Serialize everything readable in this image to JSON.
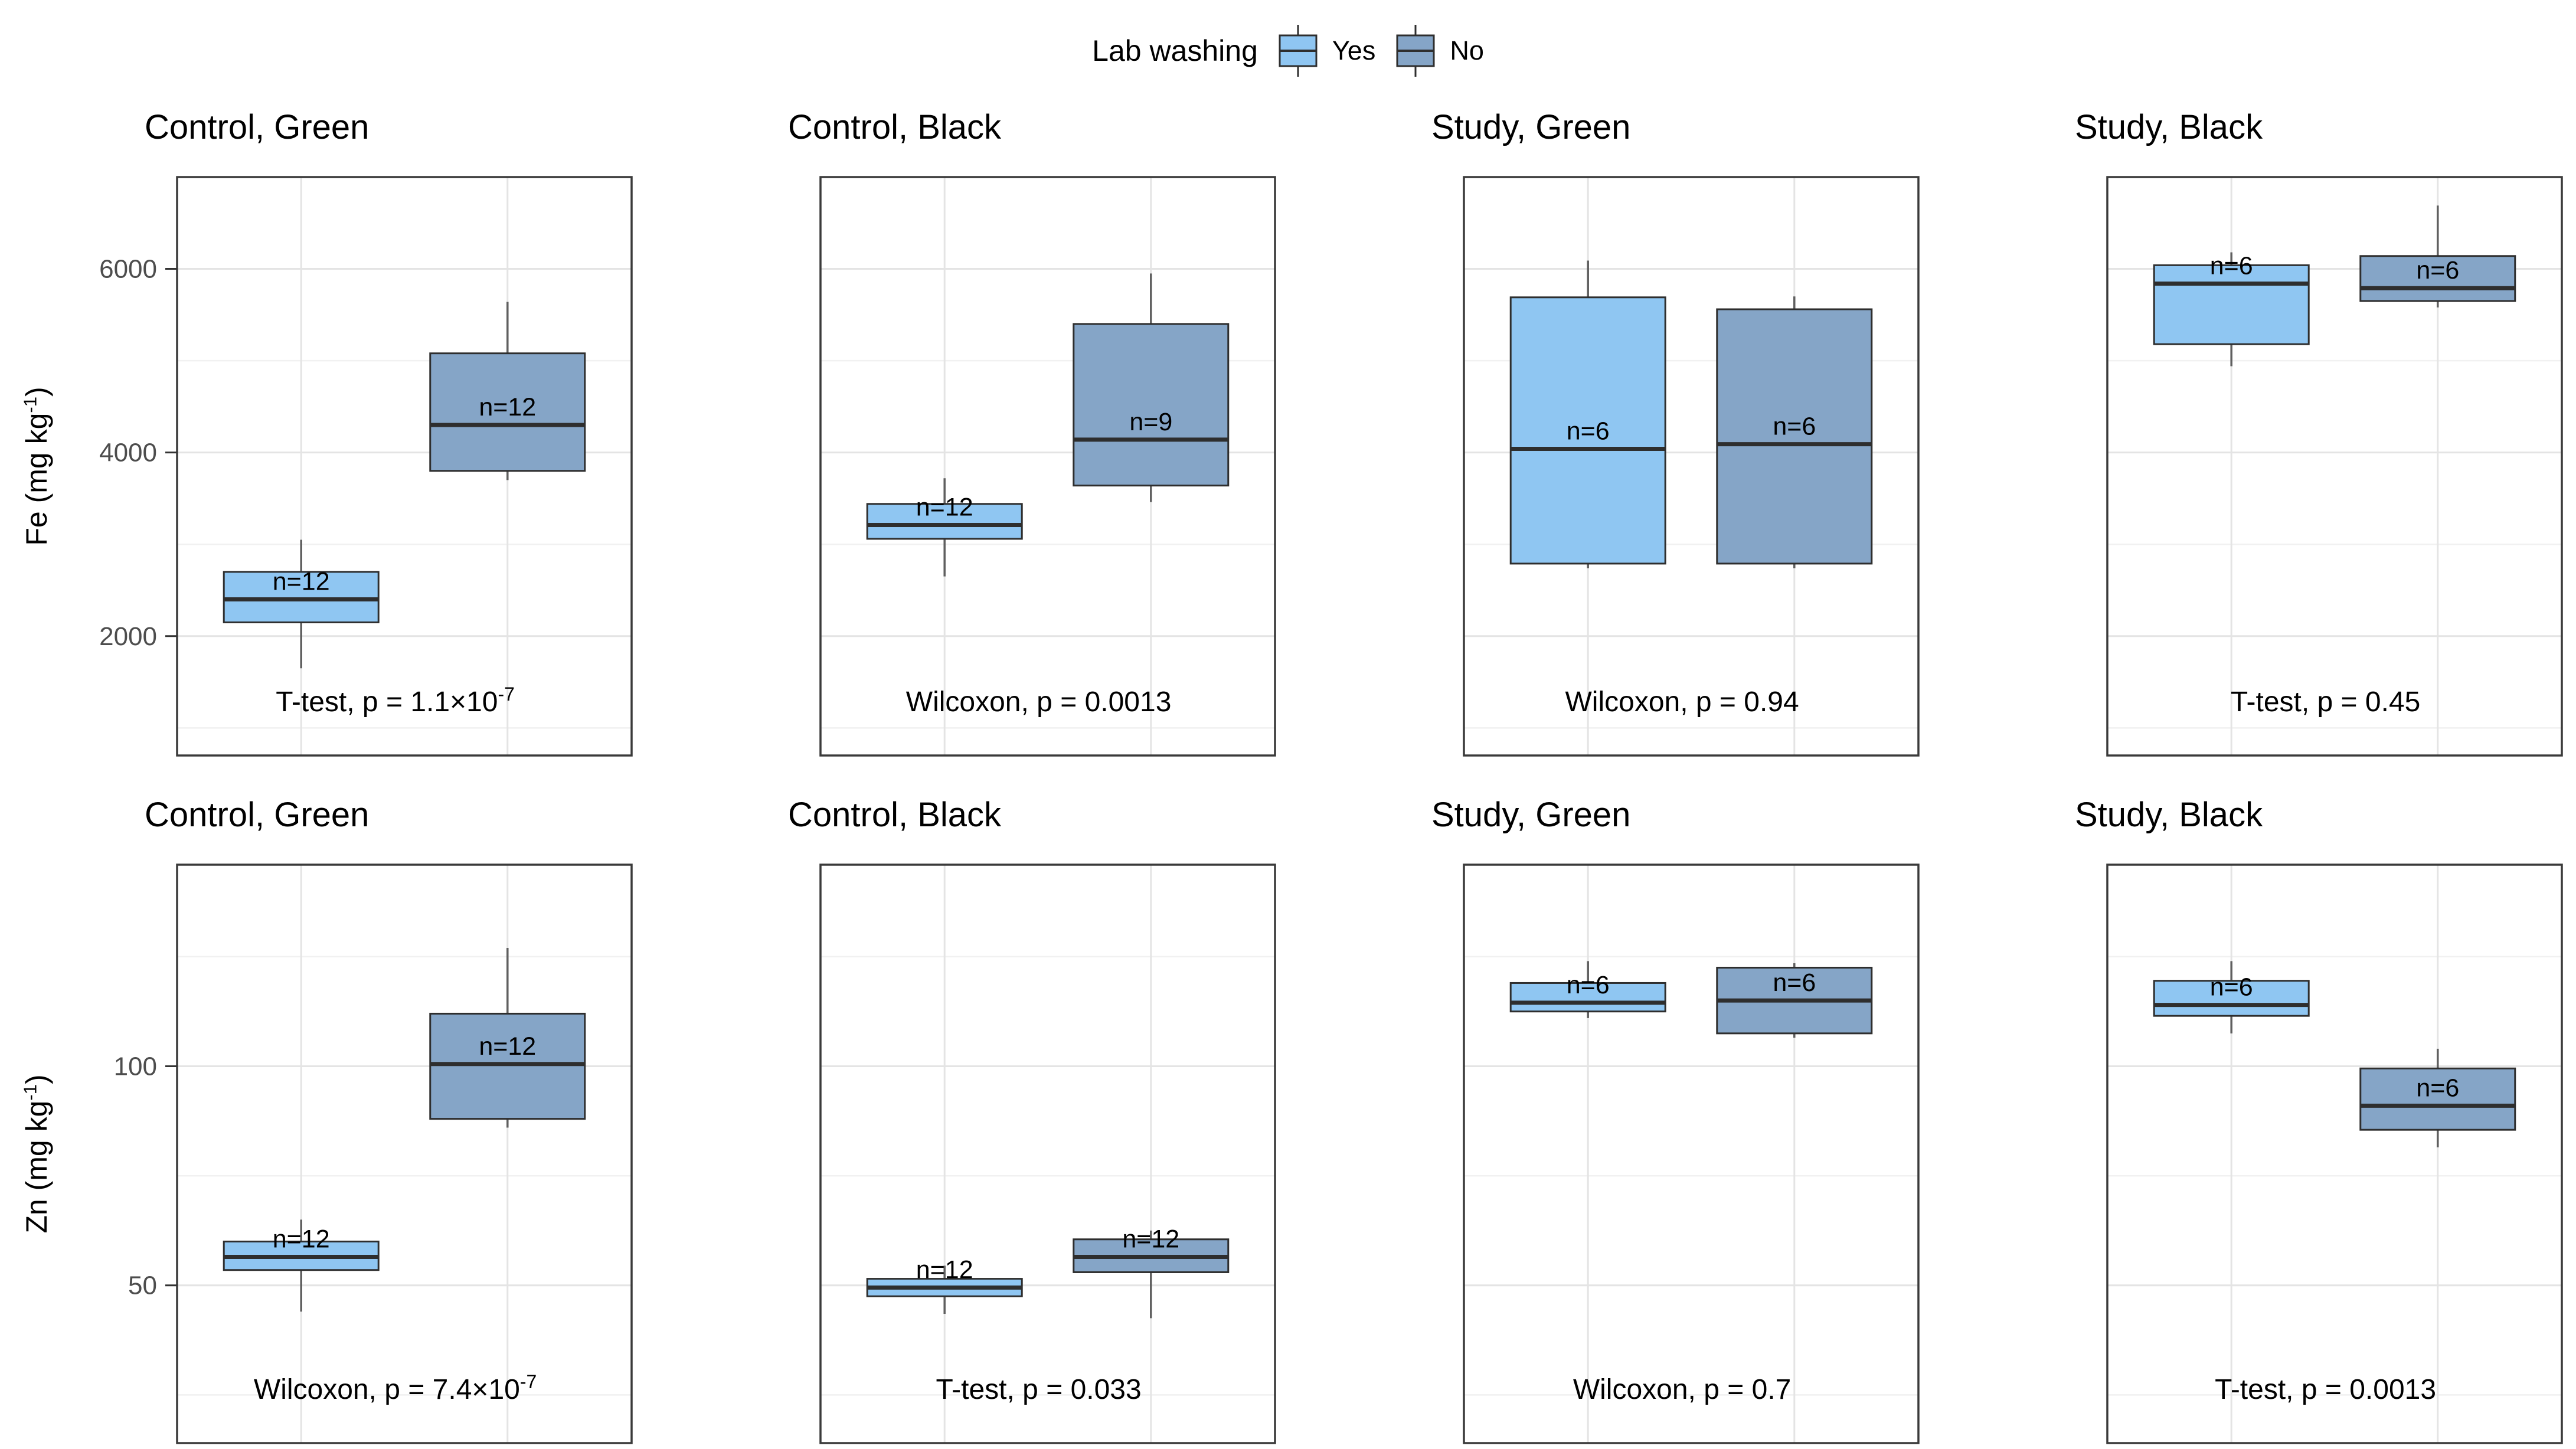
{
  "figure": {
    "legend": {
      "title": "Lab washing",
      "items": [
        {
          "label": "Yes",
          "color": "#8FC6F2"
        },
        {
          "label": "No",
          "color": "#85A5C7"
        }
      ]
    },
    "rows": [
      {
        "axis_label": "Fe (mg kg⁻¹)"
      },
      {
        "axis_label": "Zn (mg kg⁻¹)"
      }
    ]
  },
  "style": {
    "yes_fill": "#8FC6F2",
    "no_fill": "#85A5C7",
    "box_border": "#2E2E2E",
    "median": "#2E2E2E",
    "whisker": "#5F5F5F",
    "grid_major": "#E4E4E4",
    "grid_minor": "#F1F1F1",
    "panel_border": "#3A3A3A",
    "tick_mark": "#333333",
    "tick_label": "#4D4D4D",
    "text": "#000000"
  },
  "chart_data": [
    {
      "type": "boxplot",
      "row": 0,
      "col": 0,
      "title": "Control, Green",
      "annotation": "T-test, p = 1.1×10⁻⁷",
      "y_unit": "Fe (mg kg⁻¹)",
      "ylim": [
        700,
        7000
      ],
      "yticks": [
        {
          "value": 2000,
          "label": "2000"
        },
        {
          "value": 4000,
          "label": "4000"
        },
        {
          "value": 6000,
          "label": "6000"
        }
      ],
      "yminor": [
        1000,
        3000,
        5000,
        7000
      ],
      "show_y_axis": true,
      "boxes": [
        {
          "group": "Yes",
          "n_label": "n=12",
          "low": 1650,
          "q1": 2150,
          "median": 2400,
          "q3": 2700,
          "high": 3050
        },
        {
          "group": "No",
          "n_label": "n=12",
          "low": 3700,
          "q1": 3800,
          "median": 4300,
          "q3": 5080,
          "high": 5640
        }
      ]
    },
    {
      "type": "boxplot",
      "row": 0,
      "col": 1,
      "title": "Control, Black",
      "annotation": "Wilcoxon, p = 0.0013",
      "y_unit": "Fe (mg kg⁻¹)",
      "ylim": [
        700,
        7000
      ],
      "yticks": [
        {
          "value": 2000,
          "label": "2000"
        },
        {
          "value": 4000,
          "label": "4000"
        },
        {
          "value": 6000,
          "label": "6000"
        }
      ],
      "yminor": [
        1000,
        3000,
        5000,
        7000
      ],
      "show_y_axis": false,
      "boxes": [
        {
          "group": "Yes",
          "n_label": "n=12",
          "low": 2650,
          "q1": 3060,
          "median": 3210,
          "q3": 3440,
          "high": 3720
        },
        {
          "group": "No",
          "n_label": "n=9",
          "low": 3460,
          "q1": 3640,
          "median": 4140,
          "q3": 5400,
          "high": 5950
        }
      ]
    },
    {
      "type": "boxplot",
      "row": 0,
      "col": 2,
      "title": "Study, Green",
      "annotation": "Wilcoxon, p = 0.94",
      "y_unit": "Fe (mg kg⁻¹)",
      "ylim": [
        700,
        7000
      ],
      "yticks": [
        {
          "value": 2000,
          "label": "2000"
        },
        {
          "value": 4000,
          "label": "4000"
        },
        {
          "value": 6000,
          "label": "6000"
        }
      ],
      "yminor": [
        1000,
        3000,
        5000,
        7000
      ],
      "show_y_axis": false,
      "boxes": [
        {
          "group": "Yes",
          "n_label": "n=6",
          "low": 2740,
          "q1": 2790,
          "median": 4040,
          "q3": 5690,
          "high": 6090
        },
        {
          "group": "No",
          "n_label": "n=6",
          "low": 2740,
          "q1": 2790,
          "median": 4090,
          "q3": 5560,
          "high": 5700
        }
      ]
    },
    {
      "type": "boxplot",
      "row": 0,
      "col": 3,
      "title": "Study, Black",
      "annotation": "T-test, p = 0.45",
      "y_unit": "Fe (mg kg⁻¹)",
      "ylim": [
        700,
        7000
      ],
      "yticks": [
        {
          "value": 2000,
          "label": "2000"
        },
        {
          "value": 4000,
          "label": "4000"
        },
        {
          "value": 6000,
          "label": "6000"
        }
      ],
      "yminor": [
        1000,
        3000,
        5000,
        7000
      ],
      "show_y_axis": false,
      "boxes": [
        {
          "group": "Yes",
          "n_label": "n=6",
          "low": 4940,
          "q1": 5180,
          "median": 5840,
          "q3": 6040,
          "high": 6180
        },
        {
          "group": "No",
          "n_label": "n=6",
          "low": 5580,
          "q1": 5650,
          "median": 5790,
          "q3": 6140,
          "high": 6690
        }
      ]
    },
    {
      "type": "boxplot",
      "row": 1,
      "col": 0,
      "title": "Control, Green",
      "annotation": "Wilcoxon, p = 7.4×10⁻⁷",
      "y_unit": "Zn (mg kg⁻¹)",
      "ylim": [
        14,
        146
      ],
      "yticks": [
        {
          "value": 50,
          "label": "50"
        },
        {
          "value": 100,
          "label": "100"
        }
      ],
      "yminor": [
        25,
        75,
        125
      ],
      "show_y_axis": true,
      "boxes": [
        {
          "group": "Yes",
          "n_label": "n=12",
          "low": 44,
          "q1": 53.5,
          "median": 56.5,
          "q3": 60,
          "high": 65
        },
        {
          "group": "No",
          "n_label": "n=12",
          "low": 86,
          "q1": 88,
          "median": 100.5,
          "q3": 112,
          "high": 127
        }
      ]
    },
    {
      "type": "boxplot",
      "row": 1,
      "col": 1,
      "title": "Control, Black",
      "annotation": "T-test, p = 0.033",
      "y_unit": "Zn (mg kg⁻¹)",
      "ylim": [
        14,
        146
      ],
      "yticks": [
        {
          "value": 50,
          "label": "50"
        },
        {
          "value": 100,
          "label": "100"
        }
      ],
      "yminor": [
        25,
        75,
        125
      ],
      "show_y_axis": false,
      "boxes": [
        {
          "group": "Yes",
          "n_label": "n=12",
          "low": 43.5,
          "q1": 47.5,
          "median": 49.5,
          "q3": 51.5,
          "high": 54.5
        },
        {
          "group": "No",
          "n_label": "n=12",
          "low": 42.5,
          "q1": 53,
          "median": 56.5,
          "q3": 60.5,
          "high": 62.5
        }
      ]
    },
    {
      "type": "boxplot",
      "row": 1,
      "col": 2,
      "title": "Study, Green",
      "annotation": "Wilcoxon, p = 0.7",
      "y_unit": "Zn (mg kg⁻¹)",
      "ylim": [
        14,
        146
      ],
      "yticks": [
        {
          "value": 50,
          "label": "50"
        },
        {
          "value": 100,
          "label": "100"
        }
      ],
      "yminor": [
        25,
        75,
        125
      ],
      "show_y_axis": false,
      "boxes": [
        {
          "group": "Yes",
          "n_label": "n=6",
          "low": 111,
          "q1": 112.5,
          "median": 114.5,
          "q3": 119,
          "high": 124
        },
        {
          "group": "No",
          "n_label": "n=6",
          "low": 106.5,
          "q1": 107.5,
          "median": 115,
          "q3": 122.5,
          "high": 123.5
        }
      ]
    },
    {
      "type": "boxplot",
      "row": 1,
      "col": 3,
      "title": "Study, Black",
      "annotation": "T-test, p = 0.0013",
      "y_unit": "Zn (mg kg⁻¹)",
      "ylim": [
        14,
        146
      ],
      "yticks": [
        {
          "value": 50,
          "label": "50"
        },
        {
          "value": 100,
          "label": "100"
        }
      ],
      "yminor": [
        25,
        75,
        125
      ],
      "show_y_axis": false,
      "boxes": [
        {
          "group": "Yes",
          "n_label": "n=6",
          "low": 107.5,
          "q1": 111.5,
          "median": 114,
          "q3": 119.5,
          "high": 124
        },
        {
          "group": "No",
          "n_label": "n=6",
          "low": 81.5,
          "q1": 85.5,
          "median": 91,
          "q3": 99.5,
          "high": 104
        }
      ]
    }
  ]
}
